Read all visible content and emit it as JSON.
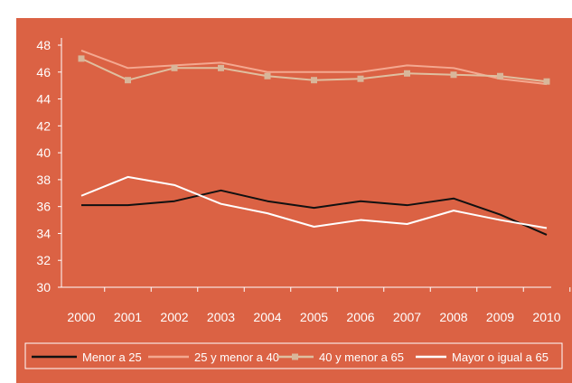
{
  "chart_data": {
    "type": "line",
    "x": [
      "2000",
      "2001",
      "2002",
      "2003",
      "2004",
      "2005",
      "2006",
      "2007",
      "2008",
      "2009",
      "2010"
    ],
    "ylim": [
      30,
      48
    ],
    "yticks": [
      30,
      32,
      34,
      36,
      38,
      40,
      42,
      44,
      46,
      48
    ],
    "grid": false,
    "legend_position": "bottom",
    "series": [
      {
        "name": "Menor a 25",
        "color": "#111111",
        "marker": "none",
        "values": [
          36.1,
          36.1,
          36.4,
          37.2,
          36.4,
          35.9,
          36.4,
          36.1,
          36.6,
          35.4,
          33.9
        ]
      },
      {
        "name": "25 y menor a 40",
        "color": "#f4a890",
        "marker": "none",
        "values": [
          47.6,
          46.3,
          46.5,
          46.7,
          46.0,
          46.0,
          46.0,
          46.5,
          46.3,
          45.5,
          45.1
        ]
      },
      {
        "name": "40 y menor a 65",
        "color": "#dfbfa0",
        "marker": "square",
        "values": [
          47.0,
          45.4,
          46.3,
          46.3,
          45.7,
          45.4,
          45.5,
          45.9,
          45.8,
          45.7,
          45.3
        ]
      },
      {
        "name": "Mayor o igual a 65",
        "color": "#ffffff",
        "marker": "none",
        "values": [
          36.8,
          38.2,
          37.6,
          36.2,
          35.5,
          34.5,
          35.0,
          34.7,
          35.7,
          35.0,
          34.4
        ]
      }
    ]
  }
}
